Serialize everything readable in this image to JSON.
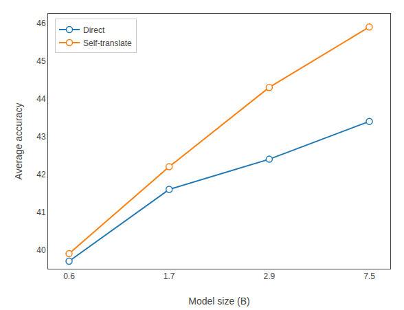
{
  "chart_data": {
    "type": "line",
    "categories": [
      "0.6",
      "1.7",
      "2.9",
      "7.5"
    ],
    "series": [
      {
        "name": "Direct",
        "color": "#1f77b4",
        "values": [
          39.7,
          41.6,
          42.4,
          43.4
        ]
      },
      {
        "name": "Self-translate",
        "color": "#ff7f0e",
        "values": [
          39.9,
          42.2,
          44.3,
          45.9
        ]
      }
    ],
    "xlabel": "Model size (B)",
    "ylabel": "Average accuracy",
    "ylim": [
      39.5,
      46.25
    ],
    "yticks": [
      40,
      41,
      42,
      43,
      44,
      45,
      46
    ],
    "marker": "circle",
    "grid": false,
    "legend": "upper left"
  }
}
